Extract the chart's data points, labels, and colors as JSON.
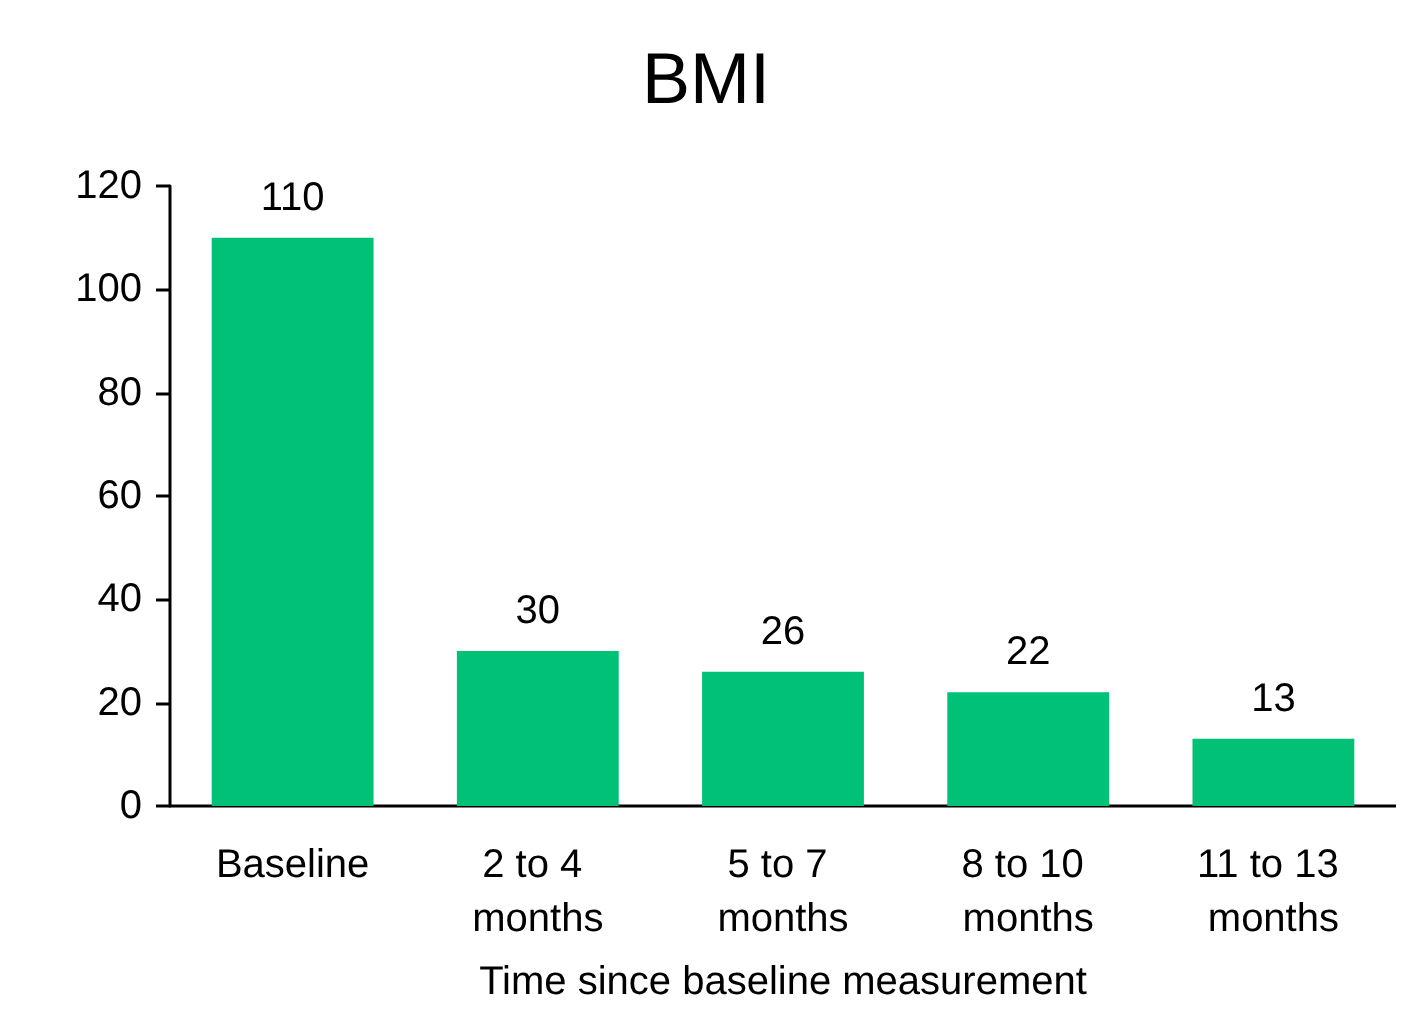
{
  "chart_data": {
    "type": "bar",
    "title": "BMI",
    "xlabel": "Time since baseline measurement",
    "categories": [
      "Baseline",
      "2 to 4 months",
      "5 to 7 months",
      "8 to 10 months",
      "11 to 13 months"
    ],
    "values": [
      110,
      30,
      26,
      22,
      13
    ],
    "color": "#00c176",
    "ylim": [
      0,
      120
    ],
    "yticks": [
      0,
      20,
      40,
      60,
      80,
      100,
      120
    ],
    "grid": false,
    "data_labels": true
  }
}
